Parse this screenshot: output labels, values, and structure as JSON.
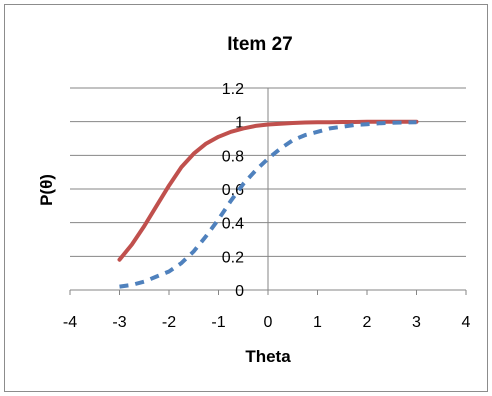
{
  "chart_data": {
    "type": "line",
    "title": "Item 27",
    "xlabel": "Theta",
    "ylabel": "P(θ)",
    "xlim": [
      -4,
      4
    ],
    "ylim": [
      0,
      1.2
    ],
    "x_ticks": [
      "-4",
      "-3",
      "-2",
      "-1",
      "0",
      "1",
      "2",
      "3",
      "4"
    ],
    "y_ticks": [
      "0",
      "0.2",
      "0.4",
      "0.6",
      "0.8",
      "1",
      "1.2"
    ],
    "grid": "horizontal",
    "legend": "none",
    "series": [
      {
        "color": "#c0504d",
        "style": "solid",
        "x": [
          -3,
          -2.75,
          -2.5,
          -2.25,
          -2,
          -1.75,
          -1.5,
          -1.25,
          -1,
          -0.75,
          -0.5,
          -0.25,
          0,
          0.25,
          0.5,
          0.75,
          1,
          1.25,
          1.5,
          1.75,
          2,
          2.25,
          2.5,
          2.75,
          3
        ],
        "values": [
          0.18,
          0.27,
          0.38,
          0.5,
          0.62,
          0.73,
          0.81,
          0.87,
          0.91,
          0.94,
          0.96,
          0.975,
          0.983,
          0.988,
          0.992,
          0.995,
          0.996,
          0.997,
          0.998,
          0.998,
          0.999,
          0.999,
          0.999,
          1.0,
          1.0
        ]
      },
      {
        "color": "#4f81bd",
        "style": "dashed",
        "x": [
          -3,
          -2.75,
          -2.5,
          -2.25,
          -2,
          -1.75,
          -1.5,
          -1.25,
          -1,
          -0.75,
          -0.5,
          -0.25,
          0,
          0.25,
          0.5,
          0.75,
          1,
          1.25,
          1.5,
          1.75,
          2,
          2.25,
          2.5,
          2.75,
          3
        ],
        "values": [
          0.02,
          0.03,
          0.05,
          0.08,
          0.11,
          0.16,
          0.23,
          0.32,
          0.42,
          0.53,
          0.63,
          0.71,
          0.78,
          0.84,
          0.89,
          0.92,
          0.94,
          0.96,
          0.97,
          0.98,
          0.985,
          0.99,
          0.993,
          0.995,
          0.997
        ]
      }
    ]
  }
}
